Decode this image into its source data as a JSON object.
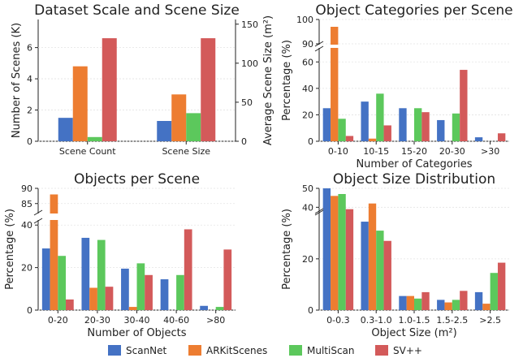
{
  "colors": {
    "ScanNet": "#4472c4",
    "ARKitScenes": "#ed7d31",
    "MultiScan": "#5cc85c",
    "SV++": "#d35a5a"
  },
  "legend": [
    "ScanNet",
    "ARKitScenes",
    "MultiScan",
    "SV++"
  ],
  "chart_data": [
    {
      "id": "scale",
      "type": "bar",
      "title": "Dataset Scale and Scene Size",
      "categories": [
        "Scene Count",
        "Scene Size"
      ],
      "ylabel": "Number of Scenes (K)",
      "ylabel_right": "Average Scene Size (m²)",
      "ylim": [
        0,
        7.8
      ],
      "ylim_right": [
        0,
        156
      ],
      "yticks": [
        0,
        2,
        4,
        6
      ],
      "yticks_right": [
        0,
        50,
        100,
        150
      ],
      "series": [
        {
          "name": "ScanNet",
          "values": [
            1.5,
            26
          ]
        },
        {
          "name": "ARKitScenes",
          "values": [
            4.8,
            60
          ]
        },
        {
          "name": "MultiScan",
          "values": [
            0.27,
            36
          ]
        },
        {
          "name": "SV++",
          "values": [
            6.6,
            132
          ]
        }
      ]
    },
    {
      "id": "categories",
      "type": "bar",
      "title": "Object Categories per Scene",
      "categories": [
        "0-10",
        "10-15",
        "15-20",
        "20-30",
        ">30"
      ],
      "xlabel": "Number of Categories",
      "ylabel": "Percentage (%)",
      "broken_axis": {
        "lower": [
          0,
          70
        ],
        "upper": [
          90,
          100
        ]
      },
      "yticks": [
        0,
        20,
        40,
        60,
        80,
        90,
        100
      ],
      "series": [
        {
          "name": "ScanNet",
          "values": [
            25,
            30,
            25,
            16,
            3
          ]
        },
        {
          "name": "ARKitScenes",
          "values": [
            97,
            2,
            0,
            0,
            0
          ]
        },
        {
          "name": "MultiScan",
          "values": [
            17,
            36,
            25,
            21,
            0
          ]
        },
        {
          "name": "SV++",
          "values": [
            4,
            12,
            22,
            54,
            6
          ]
        }
      ]
    },
    {
      "id": "objects",
      "type": "bar",
      "title": "Objects per Scene",
      "categories": [
        "0-20",
        "20-30",
        "30-40",
        "40-60",
        ">80"
      ],
      "xlabel": "Number of Objects",
      "ylabel": "Percentage (%)",
      "broken_axis": {
        "lower": [
          0,
          42
        ],
        "upper": [
          82,
          90
        ]
      },
      "yticks": [
        0,
        20,
        40,
        85,
        90
      ],
      "series": [
        {
          "name": "ScanNet",
          "values": [
            29,
            34,
            19.5,
            14.5,
            2
          ]
        },
        {
          "name": "ARKitScenes",
          "values": [
            88,
            10.5,
            1.5,
            0,
            0
          ]
        },
        {
          "name": "MultiScan",
          "values": [
            25.5,
            33,
            22,
            16.5,
            1.5
          ]
        },
        {
          "name": "SV++",
          "values": [
            5,
            11,
            16.5,
            38,
            28.5
          ]
        }
      ]
    },
    {
      "id": "size",
      "type": "bar",
      "title": "Object Size Distribution",
      "categories": [
        "0-0.3",
        "0.3-1.0",
        "1.0-1.5",
        "1.5-2.5",
        ">2.5"
      ],
      "xlabel": "Object Size (m²)",
      "ylabel": "Percentage (%)",
      "broken_axis": {
        "lower": [
          0,
          38
        ],
        "upper": [
          38,
          50
        ]
      },
      "yticks": [
        0,
        20,
        40,
        50
      ],
      "series": [
        {
          "name": "ScanNet",
          "values": [
            50,
            34.5,
            5.5,
            4,
            7
          ]
        },
        {
          "name": "ARKitScenes",
          "values": [
            46,
            42,
            5.5,
            3,
            2.5
          ]
        },
        {
          "name": "MultiScan",
          "values": [
            47,
            31,
            4.5,
            4,
            14.5
          ]
        },
        {
          "name": "SV++",
          "values": [
            39,
            27,
            7,
            7.5,
            18.5
          ]
        }
      ]
    }
  ]
}
